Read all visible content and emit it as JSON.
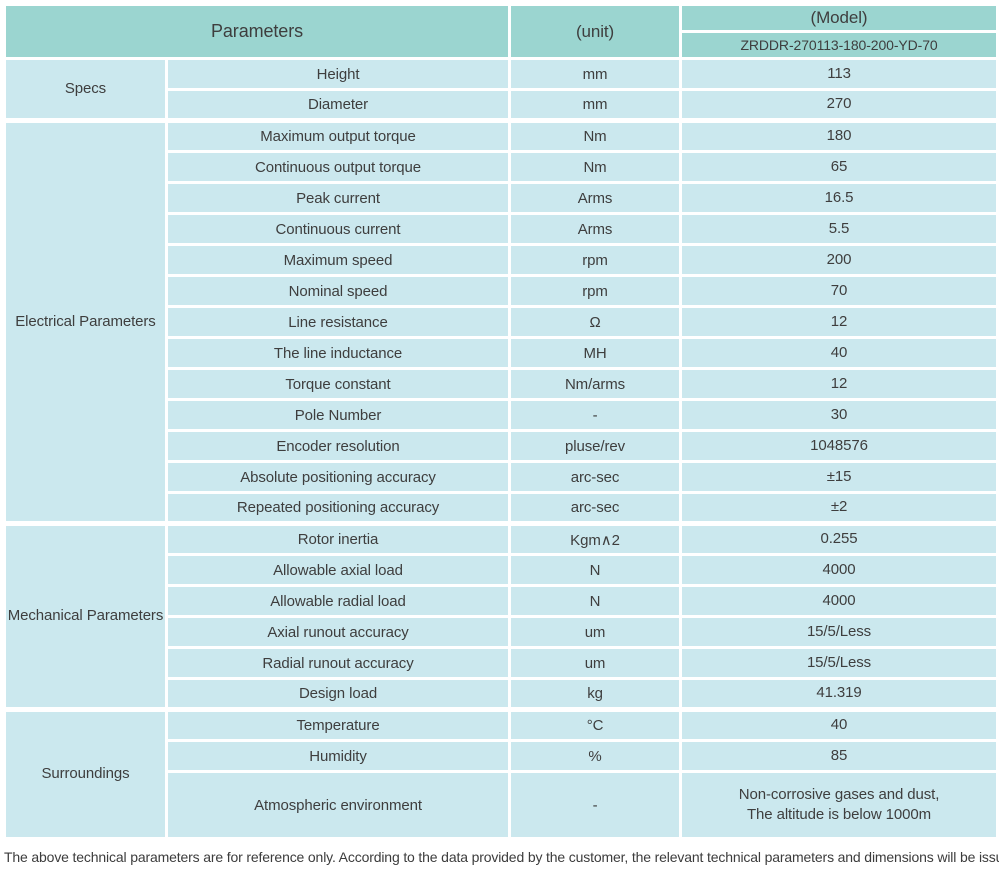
{
  "colors": {
    "header_bg": "#9bd5d0",
    "row_bg": "#cbe8ee",
    "divider": "#ffffff",
    "text": "#3e3e3e"
  },
  "header": {
    "parameters_label": "Parameters",
    "unit_label": "(unit)",
    "model_label": "(Model)",
    "model_value": "ZRDDR-270113-180-200-YD-70"
  },
  "groups": [
    {
      "id": "specs",
      "label": "Specs",
      "rows": [
        {
          "param": "Height",
          "unit": "mm",
          "value": "113"
        },
        {
          "param": "Diameter",
          "unit": "mm",
          "value": "270"
        }
      ]
    },
    {
      "id": "electrical-parameters",
      "label": "Electrical Parameters",
      "rows": [
        {
          "param": "Maximum output torque",
          "unit": "Nm",
          "value": "180"
        },
        {
          "param": "Continuous output torque",
          "unit": "Nm",
          "value": "65"
        },
        {
          "param": "Peak current",
          "unit": "Arms",
          "value": "16.5"
        },
        {
          "param": "Continuous current",
          "unit": "Arms",
          "value": "5.5"
        },
        {
          "param": "Maximum speed",
          "unit": "rpm",
          "value": "200"
        },
        {
          "param": "Nominal speed",
          "unit": "rpm",
          "value": "70"
        },
        {
          "param": "Line resistance",
          "unit": "Ω",
          "value": "12"
        },
        {
          "param": "The line inductance",
          "unit": "MH",
          "value": "40"
        },
        {
          "param": "Torque constant",
          "unit": "Nm/arms",
          "value": "12"
        },
        {
          "param": "Pole Number",
          "unit": "-",
          "value": "30"
        },
        {
          "param": "Encoder resolution",
          "unit": "pluse/rev",
          "value": "1048576"
        },
        {
          "param": "Absolute positioning accuracy",
          "unit": "arc-sec",
          "value": "±15"
        },
        {
          "param": "Repeated positioning accuracy",
          "unit": "arc-sec",
          "value": "±2"
        }
      ]
    },
    {
      "id": "mechanical-parameters",
      "label": "Mechanical Parameters",
      "rows": [
        {
          "param": "Rotor inertia",
          "unit": "Kgm∧2",
          "value": "0.255"
        },
        {
          "param": "Allowable axial load",
          "unit": "N",
          "value": "4000"
        },
        {
          "param": "Allowable radial load",
          "unit": "N",
          "value": "4000"
        },
        {
          "param": "Axial runout accuracy",
          "unit": "um",
          "value": "15/5/Less"
        },
        {
          "param": "Radial runout accuracy",
          "unit": "um",
          "value": "15/5/Less"
        },
        {
          "param": "Design load",
          "unit": "kg",
          "value": "41.319"
        }
      ]
    },
    {
      "id": "surroundings",
      "label": "Surroundings",
      "rows": [
        {
          "param": "Temperature",
          "unit": "°C",
          "value": "40"
        },
        {
          "param": "Humidity",
          "unit": "%",
          "value": "85"
        },
        {
          "param": "Atmospheric environment",
          "unit": "-",
          "value": "Non-corrosive gases and dust,\nThe altitude is below 1000m",
          "tall": true
        }
      ]
    }
  ],
  "footer": {
    "note": "The above technical parameters are for reference only. According to the data provided by the customer, the relevant technical parameters and dimensions will be issued."
  }
}
